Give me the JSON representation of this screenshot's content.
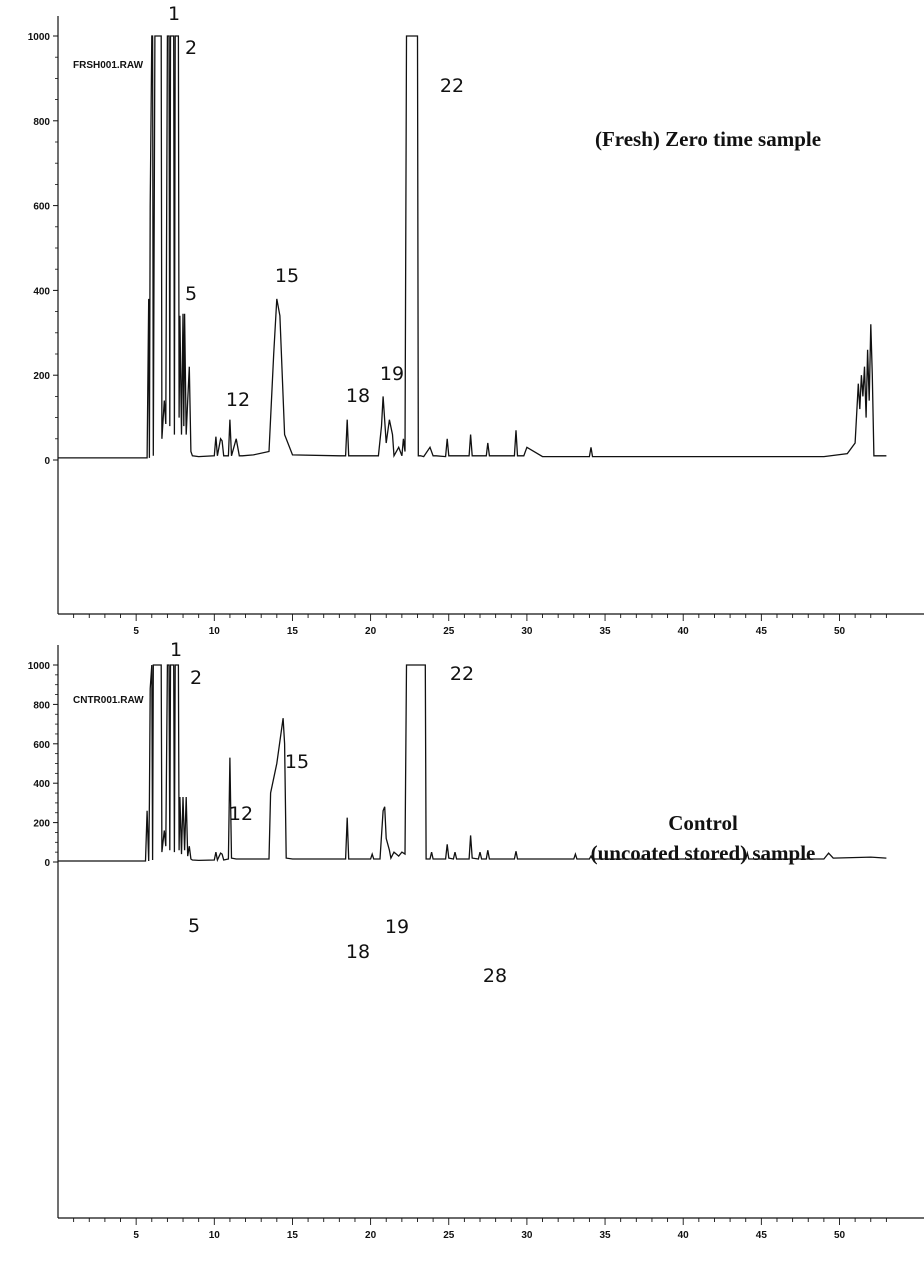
{
  "chart_data": [
    {
      "type": "line",
      "file_label": "FRSH001.RAW",
      "sample_label_lines": [
        "(Fresh) Zero time sample"
      ],
      "xlim": [
        0,
        53
      ],
      "ylim": [
        0,
        1000
      ],
      "x_ticks": [
        5,
        10,
        15,
        20,
        25,
        30,
        35,
        40,
        45,
        50
      ],
      "y_ticks": [
        0,
        200,
        400,
        600,
        800,
        1000
      ],
      "peaks": [
        {
          "label": "1",
          "x": 7.3,
          "y": 1000
        },
        {
          "label": "2",
          "x": 7.5,
          "y": 1000
        },
        {
          "label": "5",
          "x": 8.1,
          "y": 345
        },
        {
          "label": "12",
          "x": 11.0,
          "y": 95
        },
        {
          "label": "15",
          "x": 14.0,
          "y": 380
        },
        {
          "label": "18",
          "x": 18.5,
          "y": 95
        },
        {
          "label": "19",
          "x": 20.9,
          "y": 150
        },
        {
          "label": "22",
          "x": 22.9,
          "y": 1000
        }
      ],
      "series": [
        {
          "x": [
            0,
            5.7,
            5.8,
            5.85,
            5.9,
            6.0,
            6.05,
            6.1,
            6.2,
            6.3,
            6.6,
            6.65,
            6.8,
            6.9,
            7.0,
            7.1,
            7.15,
            7.2,
            7.3,
            7.4,
            7.45,
            7.5,
            7.6,
            7.7,
            7.75,
            7.8,
            7.9,
            8.0,
            8.05,
            8.1,
            8.2,
            8.3,
            8.4,
            8.5,
            8.6,
            9.0,
            10.0,
            10.1,
            10.2,
            10.4,
            10.5,
            10.6,
            10.9,
            11.0,
            11.1,
            11.4,
            11.6,
            11.8,
            12.5,
            13.5,
            13.8,
            14.0,
            14.2,
            14.5,
            15.0,
            18.0,
            18.4,
            18.5,
            18.6,
            19.0,
            20.5,
            20.7,
            20.8,
            21.0,
            21.2,
            21.4,
            21.5,
            21.8,
            22.0,
            22.1,
            22.2,
            22.3,
            22.35,
            22.5,
            23.0,
            23.05,
            23.2,
            23.4,
            23.8,
            24.0,
            24.2,
            24.8,
            24.9,
            25.0,
            26.3,
            26.4,
            26.5,
            27.4,
            27.5,
            27.6,
            29.2,
            29.3,
            29.4,
            29.8,
            30.0,
            31.0,
            34.0,
            34.1,
            34.2,
            40.0,
            49.0,
            50.5,
            51.0,
            51.2,
            51.3,
            51.4,
            51.5,
            51.6,
            51.7,
            51.8,
            51.9,
            52.0,
            52.1,
            52.2,
            52.3,
            52.4,
            53.0
          ],
          "y": [
            5,
            5,
            380,
            5,
            600,
            1000,
            1000,
            10,
            1000,
            1000,
            1000,
            50,
            140,
            85,
            1000,
            1000,
            80,
            1000,
            1000,
            1000,
            60,
            1000,
            1000,
            1000,
            100,
            340,
            60,
            345,
            80,
            345,
            60,
            140,
            220,
            20,
            10,
            8,
            10,
            55,
            10,
            50,
            45,
            10,
            10,
            95,
            10,
            50,
            10,
            10,
            12,
            20,
            250,
            380,
            340,
            60,
            12,
            10,
            10,
            95,
            10,
            10,
            10,
            80,
            150,
            40,
            95,
            60,
            10,
            30,
            10,
            50,
            20,
            1000,
            1000,
            1000,
            1000,
            10,
            10,
            8,
            30,
            10,
            10,
            8,
            50,
            10,
            10,
            60,
            10,
            10,
            40,
            10,
            10,
            70,
            10,
            10,
            30,
            8,
            8,
            30,
            8,
            8,
            8,
            15,
            40,
            180,
            120,
            200,
            150,
            220,
            100,
            260,
            140,
            320,
            200,
            10,
            10,
            10,
            10
          ]
        }
      ]
    },
    {
      "type": "line",
      "file_label": "CNTR001.RAW",
      "sample_label_lines": [
        "Control",
        "(uncoated stored) sample"
      ],
      "xlim": [
        0,
        53
      ],
      "ylim": [
        0,
        1000
      ],
      "x_ticks": [
        5,
        10,
        15,
        20,
        25,
        30,
        35,
        40,
        45,
        50
      ],
      "y_ticks": [
        0,
        200,
        400,
        600,
        800,
        1000
      ],
      "peaks": [
        {
          "label": "1",
          "x": 7.3,
          "y": 1000
        },
        {
          "label": "2",
          "x": 7.6,
          "y": 1000
        },
        {
          "label": "5",
          "x": 8.2,
          "y": 330
        },
        {
          "label": "12",
          "x": 11.0,
          "y": 530
        },
        {
          "label": "15",
          "x": 14.4,
          "y": 730
        },
        {
          "label": "18",
          "x": 18.5,
          "y": 225
        },
        {
          "label": "19",
          "x": 20.9,
          "y": 280
        },
        {
          "label": "22",
          "x": 23.0,
          "y": 1000
        },
        {
          "label": "28",
          "x": 26.5,
          "y": 135
        }
      ],
      "series": [
        {
          "x": [
            0,
            5.6,
            5.7,
            5.8,
            5.85,
            5.9,
            6.0,
            6.05,
            6.1,
            6.2,
            6.6,
            6.65,
            6.8,
            6.9,
            7.0,
            7.1,
            7.15,
            7.2,
            7.3,
            7.4,
            7.45,
            7.5,
            7.6,
            7.7,
            7.75,
            7.8,
            7.9,
            8.0,
            8.1,
            8.2,
            8.3,
            8.4,
            8.5,
            8.6,
            9.0,
            10.0,
            10.1,
            10.2,
            10.4,
            10.5,
            10.6,
            10.9,
            11.0,
            11.1,
            11.4,
            12.0,
            13.5,
            13.6,
            14.0,
            14.4,
            14.5,
            14.6,
            15.0,
            18.0,
            18.4,
            18.5,
            18.6,
            19.0,
            20.0,
            20.1,
            20.2,
            20.6,
            20.8,
            20.9,
            21.0,
            21.2,
            21.3,
            21.5,
            21.8,
            22.0,
            22.2,
            22.3,
            22.4,
            22.5,
            23.5,
            23.55,
            23.8,
            23.9,
            24.0,
            24.8,
            24.9,
            25.0,
            25.3,
            25.4,
            25.5,
            26.3,
            26.4,
            26.5,
            26.9,
            27.0,
            27.1,
            27.4,
            27.5,
            27.6,
            29.2,
            29.3,
            29.4,
            30.0,
            33.0,
            33.1,
            33.2,
            34.0,
            34.1,
            34.2,
            40.0,
            44.0,
            44.1,
            44.2,
            49.0,
            49.3,
            49.6,
            52.0,
            53.0
          ],
          "y": [
            5,
            5,
            260,
            5,
            300,
            880,
            1000,
            10,
            1000,
            1000,
            1000,
            50,
            160,
            80,
            1000,
            1000,
            60,
            1000,
            1000,
            1000,
            50,
            1000,
            1000,
            1000,
            60,
            330,
            40,
            330,
            60,
            330,
            30,
            80,
            15,
            10,
            8,
            10,
            50,
            10,
            45,
            40,
            10,
            15,
            530,
            20,
            15,
            15,
            15,
            350,
            500,
            730,
            600,
            20,
            15,
            15,
            15,
            225,
            15,
            15,
            15,
            40,
            15,
            15,
            260,
            280,
            120,
            60,
            20,
            50,
            30,
            50,
            40,
            1000,
            1000,
            1000,
            1000,
            15,
            15,
            50,
            15,
            15,
            90,
            20,
            15,
            50,
            15,
            15,
            135,
            20,
            15,
            50,
            15,
            15,
            60,
            15,
            15,
            55,
            15,
            15,
            15,
            40,
            15,
            15,
            30,
            15,
            15,
            15,
            45,
            15,
            15,
            45,
            20,
            25,
            20
          ]
        }
      ]
    }
  ]
}
